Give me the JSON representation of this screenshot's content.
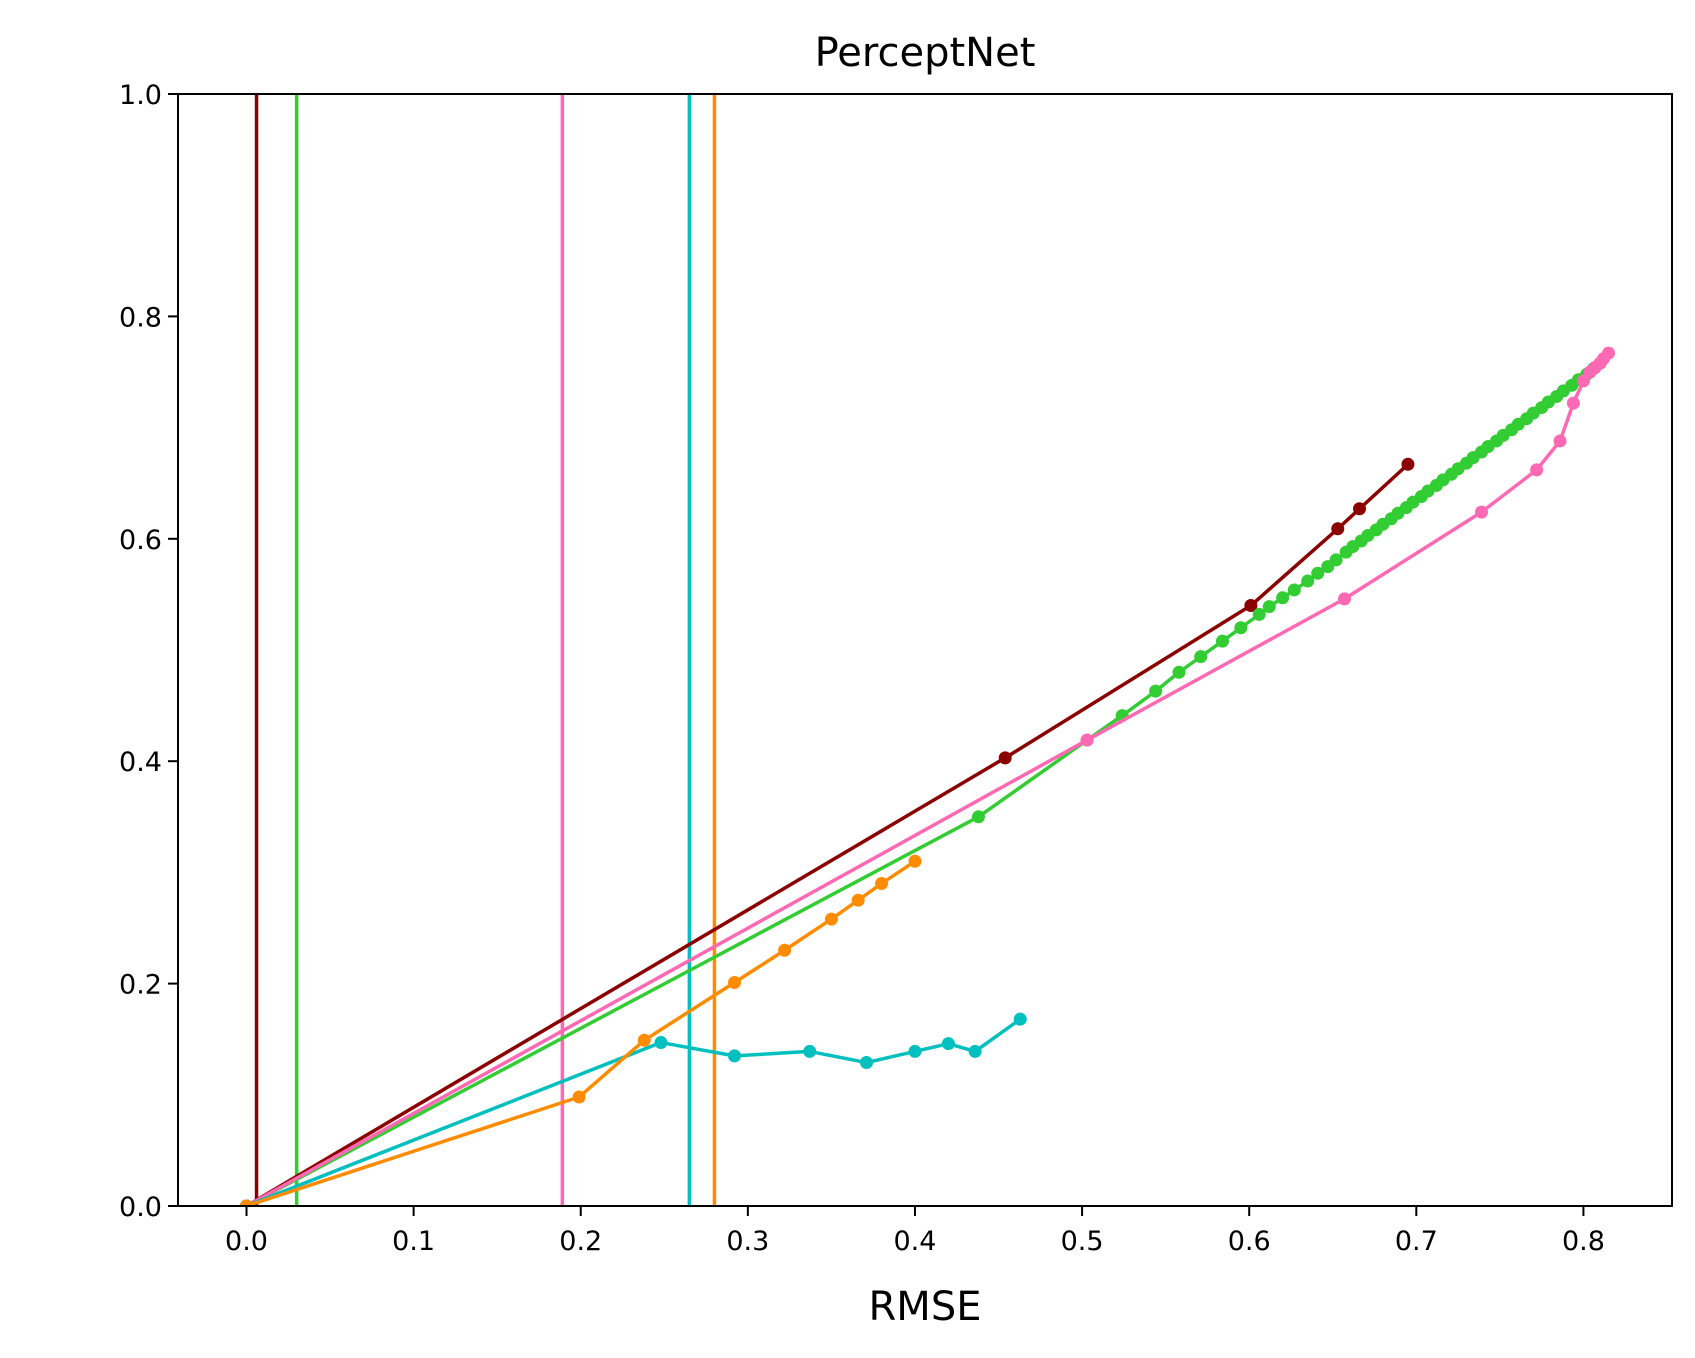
{
  "chart_data": {
    "type": "line",
    "title": "PerceptNet",
    "xlabel": "RMSE",
    "ylabel": "",
    "xlim": [
      -0.041,
      0.853
    ],
    "ylim": [
      0.0,
      1.0
    ],
    "x_ticks": [
      0.0,
      0.1,
      0.2,
      0.3,
      0.4,
      0.5,
      0.6,
      0.7,
      0.8
    ],
    "x_tick_labels": [
      "0.0",
      "0.1",
      "0.2",
      "0.3",
      "0.4",
      "0.5",
      "0.6",
      "0.7",
      "0.8"
    ],
    "y_ticks": [
      0.0,
      0.2,
      0.4,
      0.6,
      0.8,
      1.0
    ],
    "y_tick_labels": [
      "0.0",
      "0.2",
      "0.4",
      "0.6",
      "0.8",
      "1.0"
    ],
    "grid": false,
    "legend": "none",
    "series": [
      {
        "color": "#8b0000",
        "vline": 0.006,
        "points": [
          [
            0.0,
            0.0
          ],
          [
            0.454,
            0.403
          ],
          [
            0.601,
            0.54
          ],
          [
            0.653,
            0.609
          ],
          [
            0.666,
            0.627
          ],
          [
            0.695,
            0.667
          ]
        ]
      },
      {
        "color": "#32cd32",
        "vline": 0.03,
        "points": [
          [
            0.0,
            0.0
          ],
          [
            0.438,
            0.35
          ],
          [
            0.503,
            0.419
          ],
          [
            0.524,
            0.441
          ],
          [
            0.544,
            0.463
          ],
          [
            0.558,
            0.48
          ],
          [
            0.571,
            0.494
          ],
          [
            0.584,
            0.508
          ],
          [
            0.595,
            0.52
          ],
          [
            0.606,
            0.532
          ],
          [
            0.612,
            0.539
          ],
          [
            0.62,
            0.547
          ],
          [
            0.627,
            0.554
          ],
          [
            0.635,
            0.562
          ],
          [
            0.641,
            0.569
          ],
          [
            0.647,
            0.575
          ],
          [
            0.652,
            0.581
          ],
          [
            0.658,
            0.588
          ],
          [
            0.662,
            0.593
          ],
          [
            0.667,
            0.598
          ],
          [
            0.671,
            0.603
          ],
          [
            0.676,
            0.608
          ],
          [
            0.68,
            0.613
          ],
          [
            0.685,
            0.618
          ],
          [
            0.689,
            0.623
          ],
          [
            0.694,
            0.628
          ],
          [
            0.698,
            0.633
          ],
          [
            0.703,
            0.638
          ],
          [
            0.707,
            0.643
          ],
          [
            0.712,
            0.648
          ],
          [
            0.716,
            0.653
          ],
          [
            0.721,
            0.658
          ],
          [
            0.725,
            0.663
          ],
          [
            0.73,
            0.668
          ],
          [
            0.734,
            0.673
          ],
          [
            0.739,
            0.678
          ],
          [
            0.743,
            0.683
          ],
          [
            0.748,
            0.688
          ],
          [
            0.752,
            0.693
          ],
          [
            0.757,
            0.698
          ],
          [
            0.761,
            0.703
          ],
          [
            0.766,
            0.708
          ],
          [
            0.77,
            0.713
          ],
          [
            0.775,
            0.718
          ],
          [
            0.779,
            0.723
          ],
          [
            0.784,
            0.728
          ],
          [
            0.788,
            0.733
          ],
          [
            0.793,
            0.738
          ],
          [
            0.797,
            0.743
          ],
          [
            0.802,
            0.748
          ],
          [
            0.806,
            0.753
          ],
          [
            0.81,
            0.758
          ]
        ]
      },
      {
        "color": "#ff69b4",
        "vline": 0.189,
        "points": [
          [
            0.0,
            0.0
          ],
          [
            0.503,
            0.419
          ],
          [
            0.657,
            0.546
          ],
          [
            0.739,
            0.624
          ],
          [
            0.772,
            0.662
          ],
          [
            0.786,
            0.688
          ],
          [
            0.794,
            0.722
          ],
          [
            0.8,
            0.742
          ],
          [
            0.804,
            0.75
          ],
          [
            0.807,
            0.754
          ],
          [
            0.81,
            0.758
          ],
          [
            0.812,
            0.762
          ],
          [
            0.815,
            0.767
          ]
        ]
      },
      {
        "color": "#00bfbf",
        "vline": 0.265,
        "points": [
          [
            0.0,
            0.0
          ],
          [
            0.248,
            0.147
          ],
          [
            0.292,
            0.135
          ],
          [
            0.337,
            0.139
          ],
          [
            0.371,
            0.129
          ],
          [
            0.4,
            0.139
          ],
          [
            0.42,
            0.146
          ],
          [
            0.436,
            0.139
          ],
          [
            0.463,
            0.168
          ]
        ]
      },
      {
        "color": "#ff8c00",
        "vline": 0.28,
        "points": [
          [
            0.0,
            0.0
          ],
          [
            0.199,
            0.098
          ],
          [
            0.238,
            0.149
          ],
          [
            0.292,
            0.201
          ],
          [
            0.322,
            0.23
          ],
          [
            0.35,
            0.258
          ],
          [
            0.366,
            0.275
          ],
          [
            0.38,
            0.29
          ],
          [
            0.4,
            0.31
          ]
        ]
      }
    ]
  }
}
